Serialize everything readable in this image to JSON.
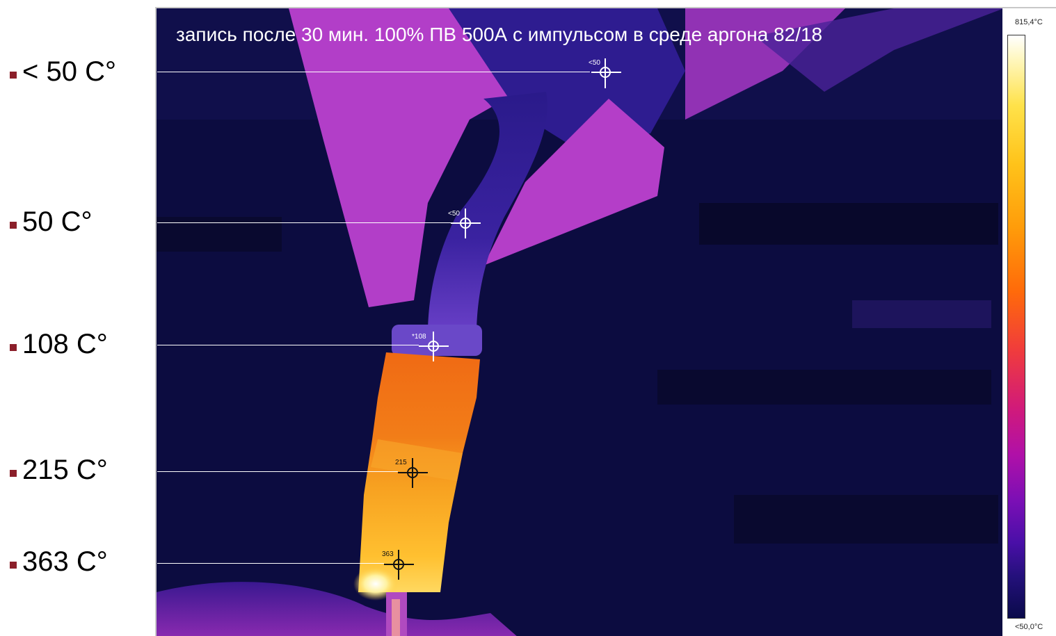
{
  "caption": "запись после 30 мин. 100% ПВ 500А с импульсом в среде аргона 82/18",
  "temperature_labels": [
    {
      "text": "< 50 C°",
      "marker": "<50",
      "marker_color": "#ffffff"
    },
    {
      "text": "50 C°",
      "marker": "<50",
      "marker_color": "#ffffff"
    },
    {
      "text": "108 C°",
      "marker": "*108",
      "marker_color": "#ffffff"
    },
    {
      "text": "215 C°",
      "marker": "215",
      "marker_color": "#111111"
    },
    {
      "text": "363 C°",
      "marker": "363",
      "marker_color": "#111111"
    }
  ],
  "scale": {
    "max": "815,4°C",
    "min": "<50,0°C"
  },
  "colors": {
    "bullet": "#8b1f2a",
    "background_cold": "#0a0a3a",
    "magenta": "#b83cc8",
    "violet": "#4b2aa8",
    "orange": "#f07818",
    "yellow": "#ffc830"
  }
}
